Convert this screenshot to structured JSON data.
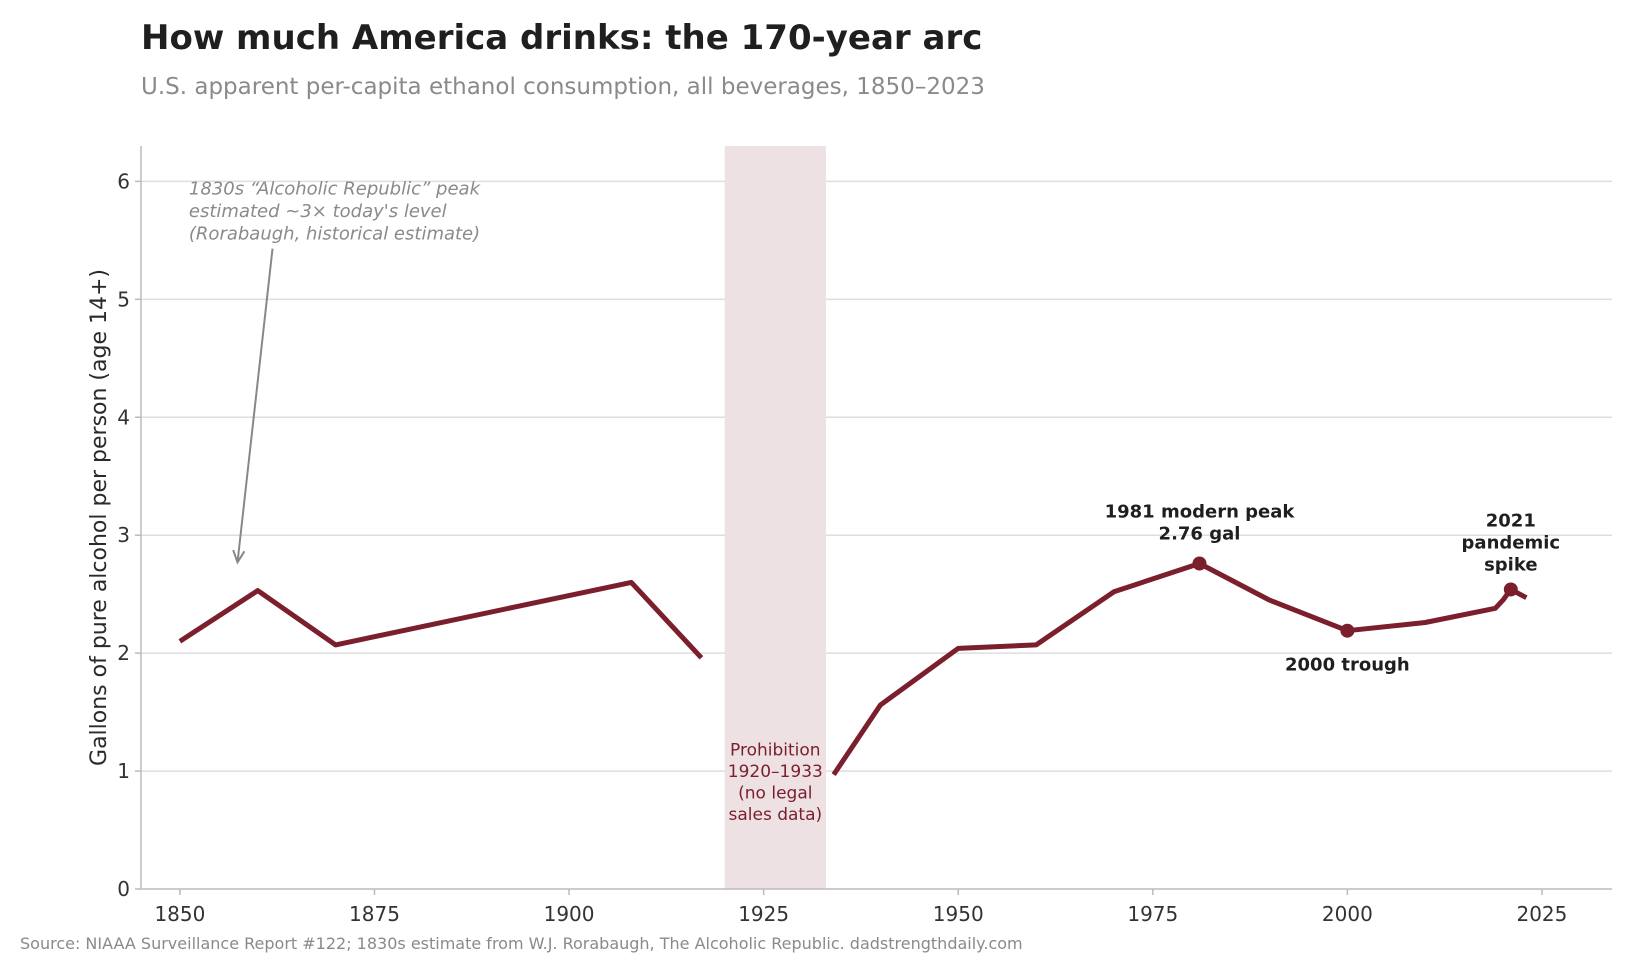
{
  "chart_data": {
    "type": "line",
    "title": "How much America drinks: the 170-year arc",
    "subtitle": "U.S. apparent per-capita ethanol consumption, all beverages, 1850–2023",
    "ylabel": "Gallons of pure alcohol per person (age 14+)",
    "xlabel": "",
    "xlim": [
      1845,
      2034
    ],
    "ylim": [
      0,
      6.3
    ],
    "x_ticks": [
      1850,
      1875,
      1900,
      1925,
      1950,
      1975,
      2000,
      2025
    ],
    "y_ticks": [
      0,
      1,
      2,
      3,
      4,
      5,
      6
    ],
    "grid": "horizontal",
    "line_color": "#7a1f2b",
    "series": [
      {
        "segment": "pre-prohibition",
        "points": [
          [
            1850,
            2.1
          ],
          [
            1860,
            2.53
          ],
          [
            1870,
            2.07
          ],
          [
            1908,
            2.6
          ],
          [
            1917,
            1.96
          ]
        ]
      },
      {
        "segment": "post-prohibition",
        "points": [
          [
            1934,
            0.97
          ],
          [
            1940,
            1.56
          ],
          [
            1950,
            2.04
          ],
          [
            1960,
            2.07
          ],
          [
            1970,
            2.52
          ],
          [
            1981,
            2.76
          ],
          [
            1990,
            2.45
          ],
          [
            2000,
            2.19
          ],
          [
            2010,
            2.26
          ],
          [
            2019,
            2.38
          ],
          [
            2020,
            2.45
          ],
          [
            2021,
            2.54
          ],
          [
            2023,
            2.47
          ]
        ]
      }
    ],
    "highlighted_points": [
      [
        1981,
        2.76
      ],
      [
        2000,
        2.19
      ],
      [
        2021,
        2.54
      ]
    ],
    "shaded_region": {
      "x_range": [
        1920,
        1933
      ],
      "color": "#ede1e4",
      "label_lines": [
        "Prohibition",
        "1920–1933",
        "(no legal",
        "sales data)"
      ]
    },
    "annotations": {
      "peak_1981": [
        "1981 modern peak",
        "2.76 gal"
      ],
      "trough_2000": [
        "2000 trough"
      ],
      "spike_2021": [
        "2021",
        "pandemic",
        "spike"
      ],
      "alcoholic_republic": [
        "1830s “Alcoholic Republic” peak",
        "estimated ~3× today's level",
        "(Rorabaugh, historical estimate)"
      ]
    }
  },
  "source": "Source: NIAAA Surveillance Report #122; 1830s estimate from W.J. Rorabaugh, The Alcoholic Republic.  dadstrengthdaily.com"
}
